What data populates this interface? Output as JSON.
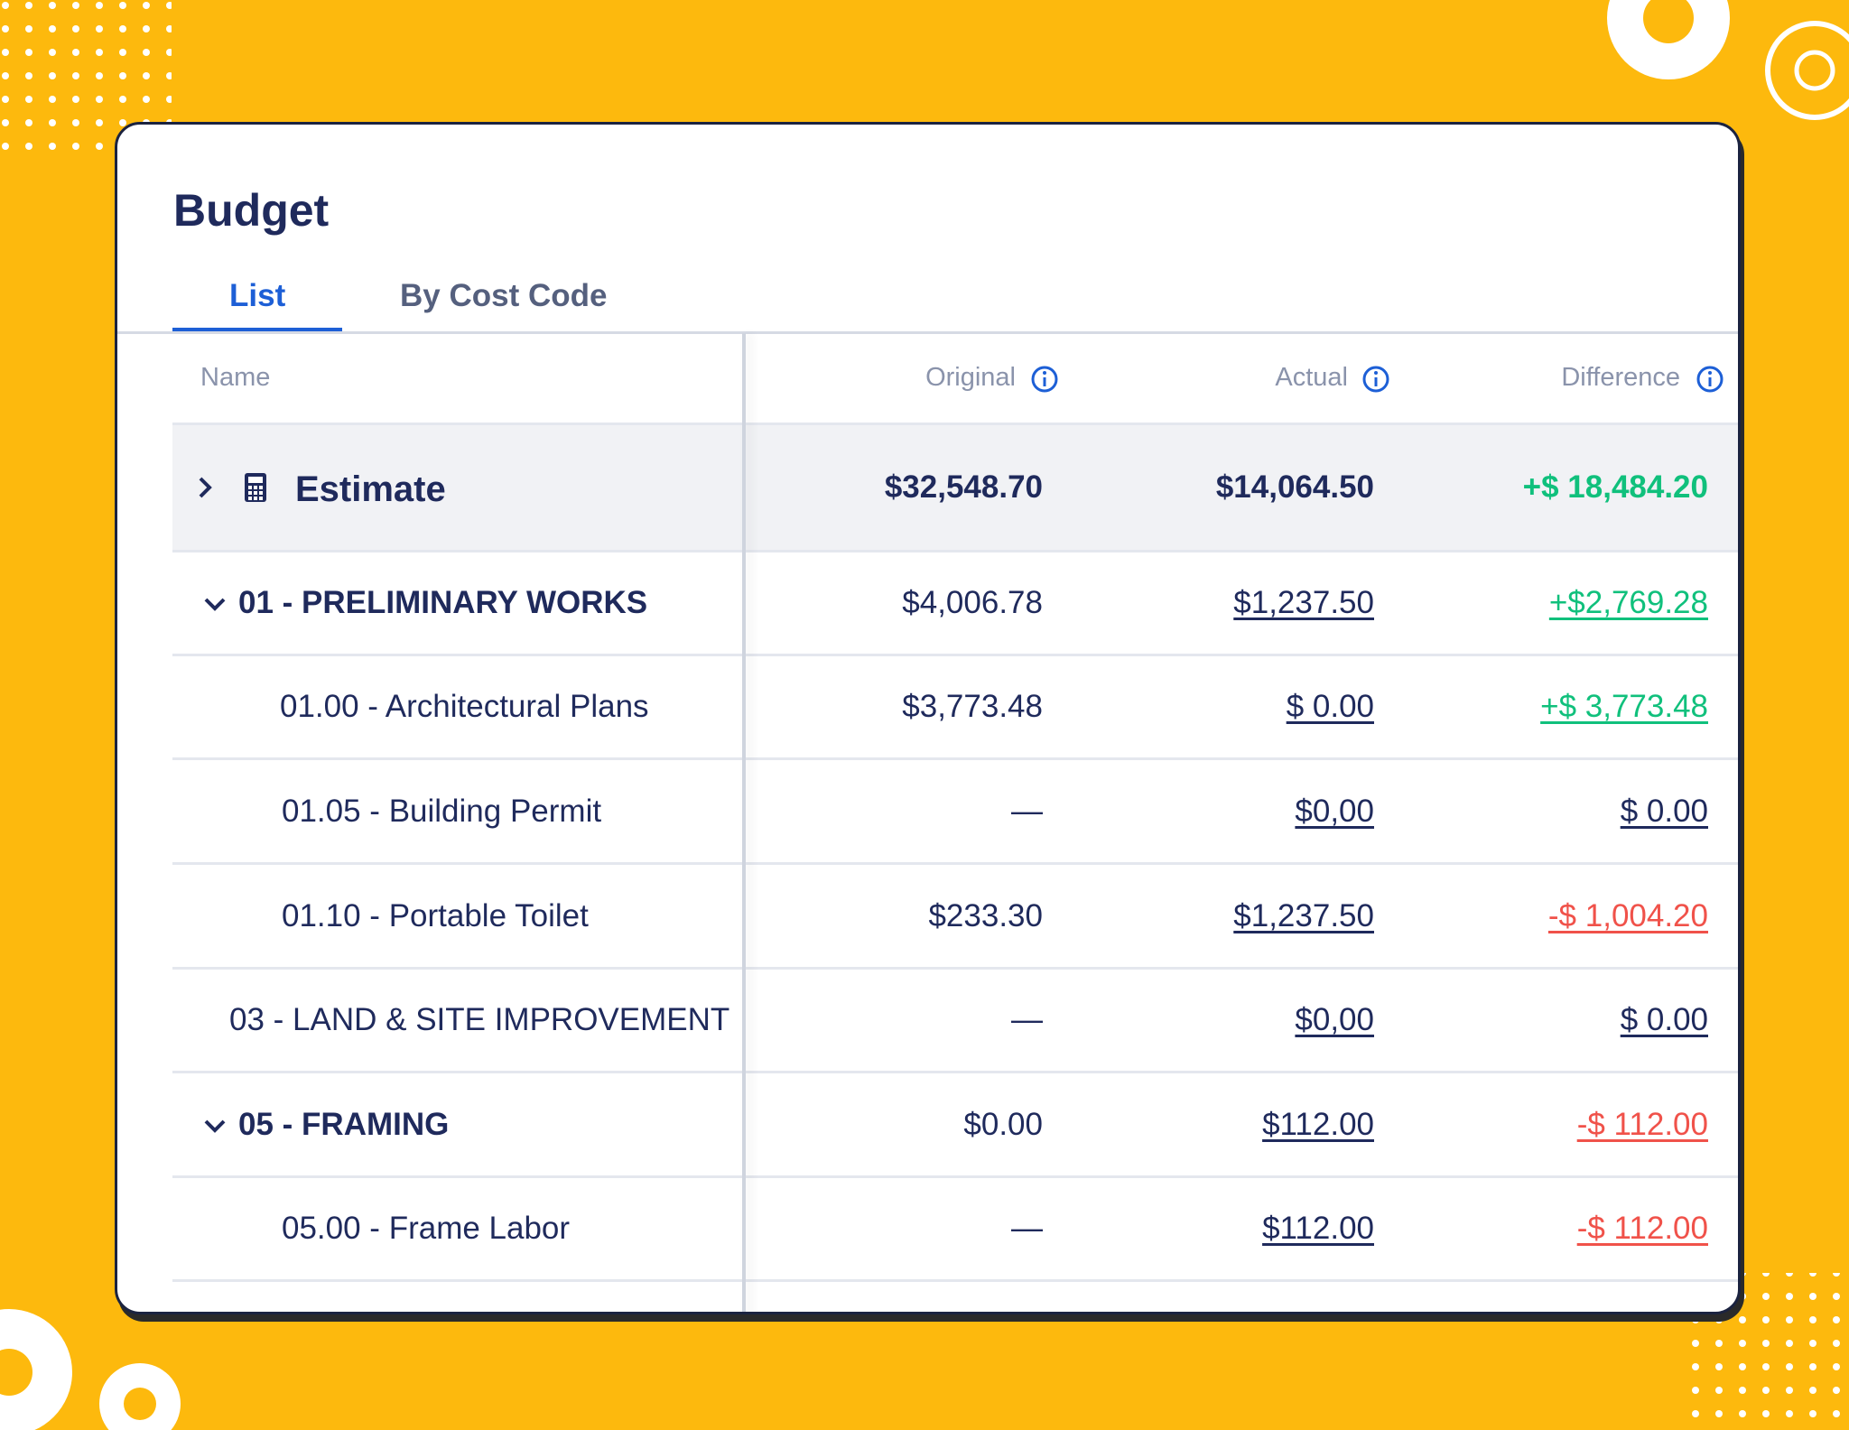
{
  "header": {
    "title": "Budget"
  },
  "tabs": [
    "List",
    "By Cost Code"
  ],
  "table": {
    "columns": [
      "Name",
      "Original",
      "Actual",
      "Difference"
    ],
    "rows": [
      [
        "Estimate",
        "$32,548.70",
        "$14,064.50",
        "+$ 18,484.20"
      ],
      [
        "01 - PRELIMINARY WORKS",
        "$4,006.78",
        "$1,237.50",
        "+$2,769.28"
      ],
      [
        "01.00 - Architectural Plans",
        "$3,773.48",
        "$ 0.00",
        "+$ 3,773.48"
      ],
      [
        "01.05 - Building Permit",
        "—",
        "$0,00",
        "$ 0.00"
      ],
      [
        "01.10 - Portable Toilet",
        "$233.30",
        "$1,237.50",
        "-$ 1,004.20"
      ],
      [
        "03 - LAND & SITE IMPROVEMENT",
        "—",
        "$0,00",
        "$ 0.00"
      ],
      [
        "05 - FRAMING",
        "$0.00",
        "$112.00",
        "-$ 112.00"
      ],
      [
        "05.00 - Frame Labor",
        "—",
        "$112.00",
        "-$ 112.00"
      ]
    ]
  }
}
